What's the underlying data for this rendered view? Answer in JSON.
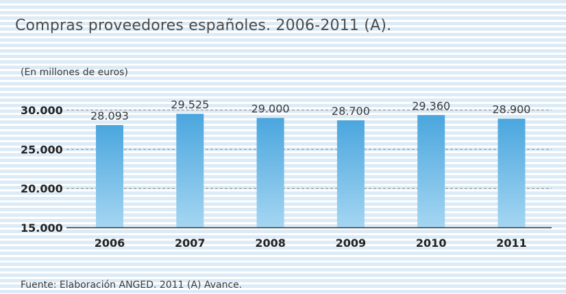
{
  "title": "Compras proveedores españoles. 2006-2011 (A).",
  "unit_label": "(En millones de euros)",
  "source": "Fuente: Elaboración ANGED. 2011 (A) Avance.",
  "colors": {
    "bar_top": "#4aa6de",
    "bar_bottom": "#a5d6f2",
    "stripe": "#dcebf6",
    "gridline": "#8a8a8a",
    "axis": "#333333",
    "text": "#3a3a3a"
  },
  "chart_data": {
    "type": "bar",
    "categories": [
      "2006",
      "2007",
      "2008",
      "2009",
      "2010",
      "2011"
    ],
    "values": [
      28093,
      29525,
      29000,
      28700,
      29360,
      28900
    ],
    "value_labels": [
      "28.093",
      "29.525",
      "29.000",
      "28.700",
      "29.360",
      "28.900"
    ],
    "y_ticks": [
      15000,
      20000,
      25000,
      30000
    ],
    "y_tick_labels": [
      "15.000",
      "20.000",
      "25.000",
      "30.000"
    ],
    "ylim": [
      15000,
      30000
    ],
    "grid": "horizontal dashed",
    "legend": "none"
  }
}
